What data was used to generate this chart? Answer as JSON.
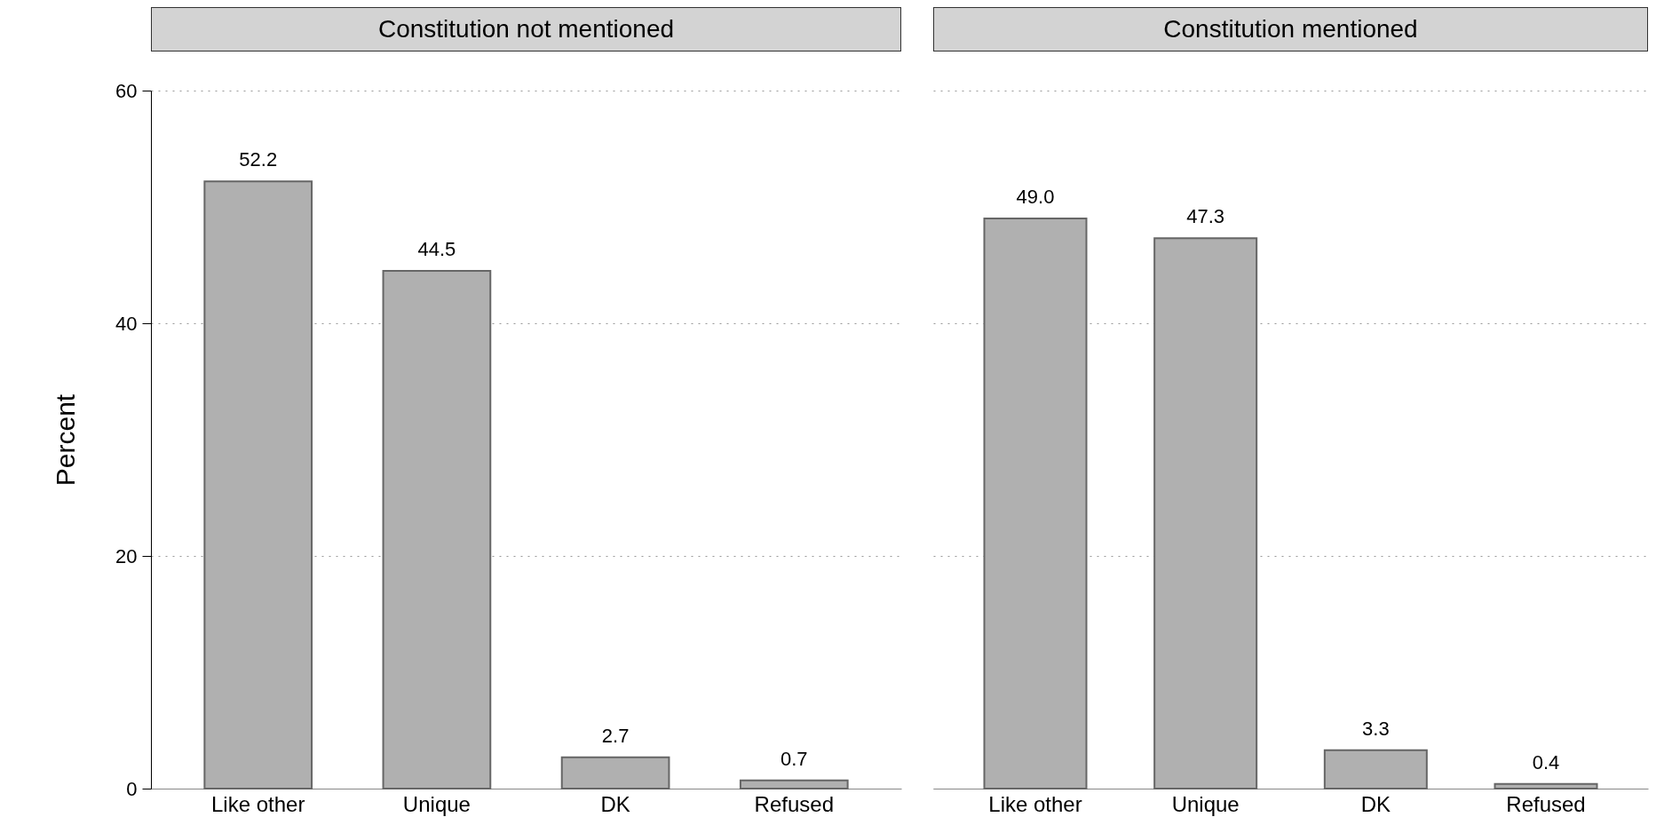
{
  "chart_data": [
    {
      "type": "bar",
      "title": "Constitution not mentioned",
      "ylabel": "Percent",
      "categories": [
        "Like other",
        "Unique",
        "DK",
        "Refused"
      ],
      "values": [
        52.2,
        44.5,
        2.7,
        0.7
      ],
      "value_labels": [
        "52.2",
        "44.5",
        "2.7",
        "0.7"
      ],
      "color": "#b0b0b0",
      "ylim": [
        0,
        60
      ],
      "yticks": [
        0,
        20,
        40,
        60
      ],
      "grid": "y"
    },
    {
      "type": "bar",
      "title": "Constitution mentioned",
      "categories": [
        "Like other",
        "Unique",
        "DK",
        "Refused"
      ],
      "values": [
        49.0,
        47.3,
        3.3,
        0.4
      ],
      "value_labels": [
        "49.0",
        "47.3",
        "3.3",
        "0.4"
      ],
      "color": "#b0b0b0",
      "ylim": [
        0,
        60
      ],
      "yticks": [
        0,
        20,
        40,
        60
      ],
      "grid": "y",
      "tick_labels": "x"
    }
  ]
}
